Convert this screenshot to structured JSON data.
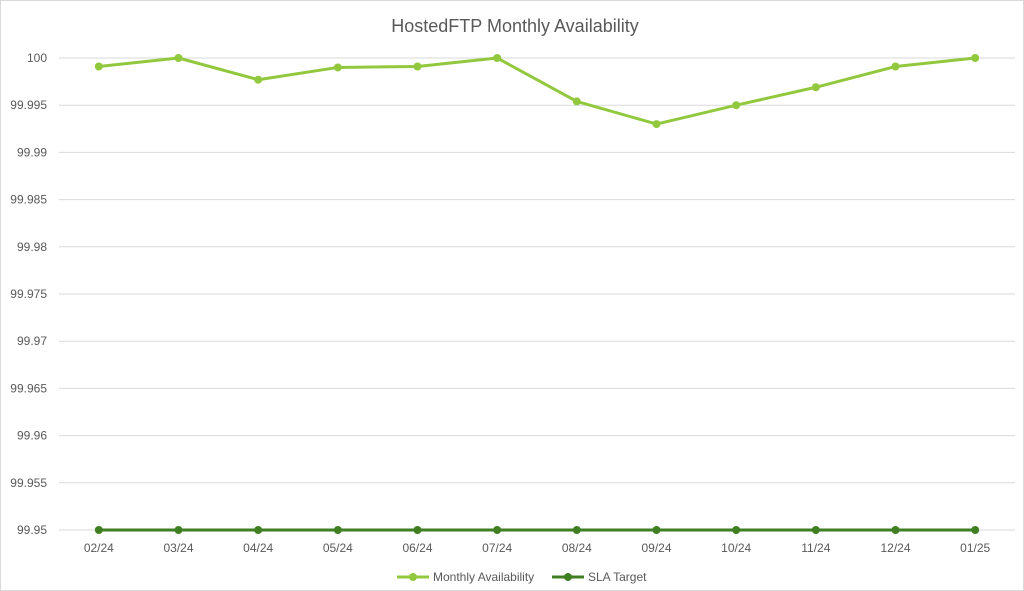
{
  "chart_data": {
    "type": "line",
    "title": "HostedFTP Monthly Availability",
    "xlabel": "",
    "ylabel": "",
    "categories": [
      "02/24",
      "03/24",
      "04/24",
      "05/24",
      "06/24",
      "07/24",
      "08/24",
      "09/24",
      "10/24",
      "11/24",
      "12/24",
      "01/25"
    ],
    "ylim": [
      99.95,
      100
    ],
    "y_ticks": [
      "100",
      "99.995",
      "99.99",
      "99.985",
      "99.98",
      "99.975",
      "99.97",
      "99.965",
      "99.96",
      "99.955",
      "99.95"
    ],
    "grid": true,
    "legend_position": "bottom",
    "series": [
      {
        "name": "Monthly Availability",
        "color": "#92c83e",
        "values": [
          99.9991,
          100,
          99.9977,
          99.999,
          99.9991,
          100,
          99.9954,
          99.993,
          99.995,
          99.9969,
          99.9991,
          100
        ]
      },
      {
        "name": "SLA Target",
        "color": "#3f7f22",
        "values": [
          99.95,
          99.95,
          99.95,
          99.95,
          99.95,
          99.95,
          99.95,
          99.95,
          99.95,
          99.95,
          99.95,
          99.95
        ]
      }
    ]
  }
}
